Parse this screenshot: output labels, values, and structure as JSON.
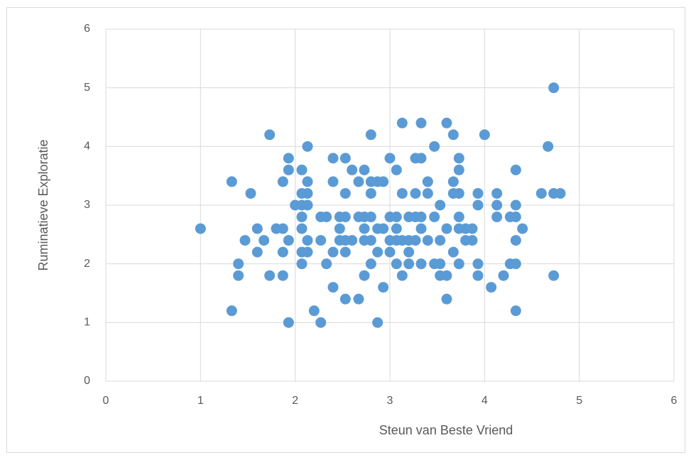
{
  "chart_data": {
    "type": "scatter",
    "x_label": "Steun van Beste Vriend",
    "y_label": "Ruminatieve Exploratie",
    "color": "#5b9bd5",
    "xlim": [
      0,
      6
    ],
    "ylim": [
      0,
      6
    ],
    "xticks": [
      0,
      1,
      2,
      3,
      4,
      5,
      6
    ],
    "yticks": [
      0,
      1,
      2,
      3,
      4,
      5,
      6
    ],
    "grid": true,
    "x": [
      1.0,
      1.33,
      1.33,
      1.4,
      1.4,
      1.47,
      1.53,
      1.6,
      1.6,
      1.67,
      1.73,
      1.73,
      1.8,
      1.87,
      1.87,
      1.87,
      1.87,
      1.93,
      1.93,
      1.93,
      1.93,
      2.0,
      2.07,
      2.07,
      2.07,
      2.07,
      2.07,
      2.07,
      2.07,
      2.13,
      2.13,
      2.13,
      2.13,
      2.13,
      2.13,
      2.2,
      2.27,
      2.27,
      2.27,
      2.33,
      2.33,
      2.4,
      2.4,
      2.4,
      2.4,
      2.47,
      2.47,
      2.47,
      2.53,
      2.53,
      2.53,
      2.53,
      2.53,
      2.53,
      2.6,
      2.6,
      2.67,
      2.67,
      2.67,
      2.73,
      2.73,
      2.73,
      2.73,
      2.73,
      2.8,
      2.8,
      2.8,
      2.8,
      2.8,
      2.8,
      2.87,
      2.87,
      2.87,
      2.87,
      2.93,
      2.93,
      2.93,
      3.0,
      3.0,
      3.0,
      3.0,
      3.07,
      3.07,
      3.07,
      3.07,
      3.07,
      3.13,
      3.13,
      3.13,
      3.13,
      3.2,
      3.2,
      3.2,
      3.2,
      3.27,
      3.27,
      3.27,
      3.27,
      3.33,
      3.33,
      3.33,
      3.33,
      3.33,
      3.4,
      3.4,
      3.4,
      3.47,
      3.47,
      3.47,
      3.53,
      3.53,
      3.53,
      3.53,
      3.6,
      3.6,
      3.6,
      3.6,
      3.67,
      3.67,
      3.67,
      3.67,
      3.73,
      3.73,
      3.73,
      3.73,
      3.73,
      3.73,
      3.8,
      3.8,
      3.87,
      3.87,
      3.93,
      3.93,
      3.93,
      3.93,
      4.0,
      4.07,
      4.13,
      4.13,
      4.13,
      4.2,
      4.27,
      4.27,
      4.33,
      4.33,
      4.33,
      4.33,
      4.33,
      4.33,
      4.4,
      4.6,
      4.67,
      4.73,
      4.73,
      4.73,
      4.8
    ],
    "y": [
      2.6,
      3.4,
      1.2,
      2.0,
      1.8,
      2.4,
      3.2,
      2.6,
      2.2,
      2.4,
      4.2,
      1.8,
      2.6,
      3.4,
      2.6,
      2.2,
      1.8,
      3.8,
      3.6,
      2.4,
      1.0,
      3.0,
      3.6,
      3.2,
      3.0,
      2.8,
      2.6,
      2.2,
      2.0,
      4.0,
      3.4,
      3.2,
      3.0,
      2.4,
      2.2,
      1.2,
      2.8,
      2.4,
      1.0,
      2.8,
      2.0,
      3.8,
      3.4,
      2.2,
      1.6,
      2.8,
      2.6,
      2.4,
      3.8,
      3.2,
      2.8,
      2.4,
      2.2,
      1.4,
      3.6,
      2.4,
      3.4,
      2.8,
      1.4,
      3.6,
      2.8,
      2.6,
      2.4,
      1.8,
      4.2,
      3.4,
      3.2,
      2.8,
      2.4,
      2.0,
      3.4,
      2.6,
      2.2,
      1.0,
      3.4,
      2.6,
      1.6,
      3.8,
      2.8,
      2.4,
      2.2,
      3.6,
      2.8,
      2.6,
      2.4,
      2.0,
      4.4,
      3.2,
      2.4,
      1.8,
      2.8,
      2.4,
      2.2,
      2.0,
      3.8,
      3.2,
      2.8,
      2.4,
      4.4,
      3.8,
      2.8,
      2.6,
      2.0,
      3.4,
      3.2,
      2.4,
      4.0,
      2.8,
      2.0,
      3.0,
      2.4,
      2.0,
      1.8,
      4.4,
      2.6,
      1.8,
      1.4,
      4.2,
      3.4,
      3.2,
      2.2,
      3.8,
      3.6,
      3.2,
      2.8,
      2.6,
      2.0,
      2.6,
      2.4,
      2.6,
      2.4,
      3.2,
      3.0,
      2.0,
      1.8,
      4.2,
      1.6,
      3.2,
      3.0,
      2.8,
      1.8,
      2.8,
      2.0,
      3.6,
      3.0,
      2.8,
      2.4,
      2.0,
      1.2,
      2.6,
      3.2,
      4.0,
      5.0,
      3.2,
      1.8,
      3.2
    ]
  }
}
